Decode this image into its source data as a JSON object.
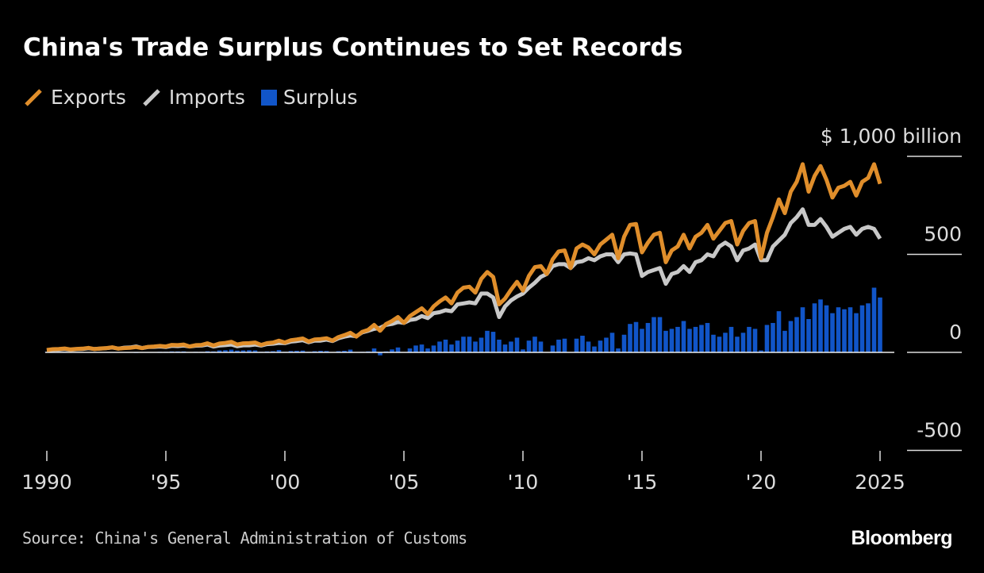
{
  "chart_data": {
    "type": "bar+line",
    "title": "China's Trade Surplus Continues to Set Records",
    "frequency": "quarterly",
    "x_start": "1990-Q1",
    "x_end": "2025-Q1",
    "x_ticks": [
      1990,
      1995,
      2000,
      2005,
      2010,
      2015,
      2020,
      2025
    ],
    "x_tick_labels": [
      "1990",
      "'95",
      "'00",
      "'05",
      "'10",
      "'15",
      "'20",
      "2025"
    ],
    "y_ticks": [
      1000,
      500,
      0,
      -500
    ],
    "y_tick_labels": [
      "$ 1,000  billion",
      "500",
      "0",
      "-500"
    ],
    "ylim": [
      -500,
      1000
    ],
    "grid": false,
    "legend_placement": "top-left",
    "series": [
      {
        "name": "Exports",
        "type": "line",
        "color": "#e08e2b",
        "values": [
          12,
          16,
          17,
          20,
          15,
          18,
          19,
          23,
          17,
          20,
          22,
          26,
          19,
          22,
          23,
          27,
          22,
          28,
          30,
          33,
          30,
          38,
          37,
          40,
          30,
          37,
          38,
          46,
          35,
          45,
          48,
          54,
          40,
          46,
          47,
          50,
          38,
          47,
          50,
          60,
          50,
          62,
          66,
          71,
          55,
          66,
          68,
          72,
          60,
          78,
          88,
          100,
          80,
          105,
          115,
          140,
          110,
          145,
          160,
          180,
          150,
          185,
          205,
          225,
          195,
          235,
          260,
          280,
          250,
          305,
          330,
          335,
          305,
          375,
          410,
          385,
          245,
          275,
          320,
          360,
          315,
          390,
          435,
          440,
          400,
          475,
          515,
          520,
          430,
          530,
          550,
          535,
          500,
          550,
          575,
          600,
          480,
          590,
          650,
          655,
          510,
          560,
          600,
          610,
          460,
          520,
          540,
          600,
          530,
          590,
          610,
          650,
          580,
          620,
          660,
          670,
          550,
          620,
          660,
          670,
          480,
          610,
          690,
          780,
          710,
          820,
          870,
          960,
          820,
          900,
          950,
          880,
          790,
          840,
          850,
          870,
          800,
          870,
          890,
          960,
          860
        ]
      },
      {
        "name": "Imports",
        "type": "line",
        "color": "#c8c8c8",
        "values": [
          10,
          13,
          14,
          17,
          13,
          16,
          17,
          21,
          17,
          19,
          21,
          25,
          19,
          24,
          25,
          30,
          22,
          27,
          28,
          30,
          27,
          33,
          32,
          35,
          30,
          34,
          35,
          40,
          30,
          35,
          37,
          40,
          31,
          36,
          36,
          40,
          35,
          42,
          44,
          48,
          47,
          55,
          58,
          62,
          52,
          60,
          60,
          65,
          58,
          72,
          80,
          86,
          82,
          102,
          110,
          120,
          125,
          140,
          145,
          155,
          150,
          165,
          170,
          185,
          175,
          200,
          205,
          215,
          210,
          245,
          250,
          255,
          250,
          300,
          300,
          280,
          180,
          235,
          265,
          285,
          300,
          330,
          355,
          385,
          400,
          440,
          450,
          450,
          430,
          460,
          465,
          480,
          470,
          490,
          500,
          500,
          460,
          500,
          505,
          500,
          390,
          410,
          420,
          430,
          350,
          400,
          410,
          440,
          410,
          460,
          470,
          500,
          490,
          540,
          560,
          540,
          470,
          520,
          530,
          550,
          470,
          470,
          540,
          570,
          600,
          660,
          690,
          730,
          650,
          650,
          680,
          640,
          590,
          610,
          630,
          640,
          600,
          630,
          640,
          630,
          580
        ]
      },
      {
        "name": "Surplus",
        "type": "bar",
        "color": "#1155c8",
        "values": [
          2,
          3,
          3,
          3,
          2,
          2,
          2,
          2,
          0,
          1,
          1,
          1,
          0,
          -2,
          -2,
          -3,
          0,
          1,
          2,
          3,
          3,
          5,
          5,
          5,
          0,
          3,
          3,
          6,
          5,
          10,
          11,
          14,
          9,
          10,
          11,
          10,
          3,
          5,
          6,
          12,
          3,
          7,
          8,
          9,
          3,
          6,
          8,
          7,
          2,
          6,
          8,
          14,
          -2,
          3,
          5,
          20,
          -15,
          5,
          15,
          25,
          0,
          20,
          35,
          40,
          20,
          35,
          55,
          65,
          40,
          60,
          80,
          80,
          55,
          75,
          110,
          105,
          65,
          40,
          55,
          75,
          15,
          60,
          80,
          55,
          0,
          35,
          65,
          70,
          0,
          70,
          85,
          55,
          30,
          60,
          75,
          100,
          20,
          90,
          145,
          155,
          120,
          150,
          180,
          180,
          110,
          120,
          130,
          160,
          120,
          130,
          140,
          150,
          90,
          80,
          100,
          130,
          80,
          100,
          130,
          120,
          10,
          140,
          150,
          210,
          110,
          160,
          180,
          230,
          170,
          250,
          270,
          240,
          200,
          230,
          220,
          230,
          200,
          240,
          250,
          330,
          280
        ]
      }
    ]
  },
  "legend": [
    {
      "label": "Exports",
      "color": "#e08e2b",
      "icon": "line-swatch"
    },
    {
      "label": "Imports",
      "color": "#c8c8c8",
      "icon": "line-swatch"
    },
    {
      "label": "Surplus",
      "color": "#1155c8",
      "icon": "square-swatch"
    }
  ],
  "source": "Source: China's General Administration of Customs",
  "logo": "Bloomberg"
}
